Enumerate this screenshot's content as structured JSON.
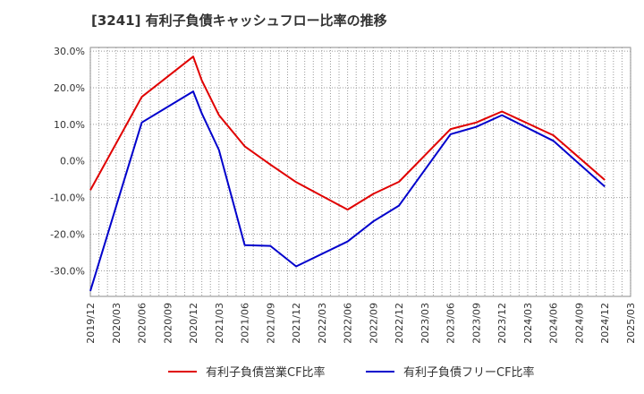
{
  "chart_data": {
    "type": "line",
    "title": "[3241]  有利子負債キャッシュフロー比率の推移",
    "xlabel": "",
    "ylabel": "",
    "x": [
      "2019/12",
      "2020/03",
      "2020/06",
      "2020/09",
      "2020/12",
      "2021/03",
      "2021/06",
      "2021/09",
      "2021/12",
      "2022/03",
      "2022/06",
      "2022/09",
      "2022/12",
      "2023/03",
      "2023/06",
      "2023/09",
      "2023/12",
      "2024/03",
      "2024/06",
      "2024/09",
      "2024/12",
      "2025/03"
    ],
    "ylim": [
      -37,
      31
    ],
    "yticks": [
      30,
      20,
      10,
      0,
      -10,
      -20,
      -30
    ],
    "ytick_labels": [
      "30.0%",
      "20.0%",
      "10.0%",
      "0.0%",
      "-10.0%",
      "-20.0%",
      "-30.0%"
    ],
    "grid": true,
    "legend_position": "bottom",
    "series": [
      {
        "name": "有利子負債営業CF比率",
        "color": "#e00000",
        "points": [
          [
            "2019/12",
            -8.0
          ],
          [
            "2020/06",
            17.5
          ],
          [
            "2020/12",
            28.5
          ],
          [
            "2021/01",
            22.0
          ],
          [
            "2021/03",
            12.5
          ],
          [
            "2021/06",
            4.0
          ],
          [
            "2021/09",
            -1.0
          ],
          [
            "2021/12",
            -5.8
          ],
          [
            "2022/06",
            -13.3
          ],
          [
            "2022/09",
            -9.0
          ],
          [
            "2022/12",
            -5.7
          ],
          [
            "2023/06",
            8.7
          ],
          [
            "2023/09",
            10.5
          ],
          [
            "2023/12",
            13.5
          ],
          [
            "2024/06",
            7.0
          ],
          [
            "2024/12",
            -5.2
          ]
        ]
      },
      {
        "name": "有利子負債フリーCF比率",
        "color": "#0000cc",
        "points": [
          [
            "2019/12",
            -35.5
          ],
          [
            "2020/06",
            10.5
          ],
          [
            "2020/12",
            19.0
          ],
          [
            "2021/01",
            13.0
          ],
          [
            "2021/03",
            3.0
          ],
          [
            "2021/06",
            -23.0
          ],
          [
            "2021/09",
            -23.2
          ],
          [
            "2021/12",
            -28.8
          ],
          [
            "2022/06",
            -22.0
          ],
          [
            "2022/09",
            -16.5
          ],
          [
            "2022/12",
            -12.2
          ],
          [
            "2023/06",
            7.3
          ],
          [
            "2023/09",
            9.3
          ],
          [
            "2023/12",
            12.5
          ],
          [
            "2024/06",
            5.5
          ],
          [
            "2024/12",
            -7.0
          ]
        ]
      }
    ]
  }
}
